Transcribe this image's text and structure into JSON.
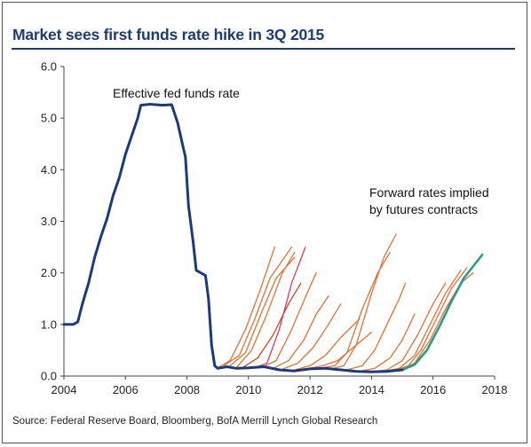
{
  "title": "Market sees first funds rate hike in 3Q 2015",
  "source": "Source: Federal Reserve Board, Bloomberg, BofA Merrill Lynch Global Research",
  "colors": {
    "title": "#1f3c72",
    "fed_funds": "#1b3a7a",
    "forward": "#d9733a",
    "forward_dark": "#c44a2a",
    "forward_magenta": "#d63a5e",
    "forward_latest": "#2a9b86"
  },
  "chart_data": {
    "type": "line",
    "title": "Market sees first funds rate hike in 3Q 2015",
    "xlim": [
      2004,
      2018
    ],
    "ylim": [
      0,
      6
    ],
    "x_ticks": [
      "2004",
      "2006",
      "2008",
      "2010",
      "2012",
      "2014",
      "2016",
      "2018"
    ],
    "y_ticks": [
      "0.0",
      "1.0",
      "2.0",
      "3.0",
      "4.0",
      "5.0",
      "6.0"
    ],
    "annotations": [
      {
        "text": "Effective fed funds rate"
      },
      {
        "text": "Forward rates implied"
      },
      {
        "text": "by futures contracts"
      }
    ],
    "series": [
      {
        "role": "fed_funds",
        "label": "Effective fed funds rate",
        "points": [
          [
            2004.0,
            1.0
          ],
          [
            2004.3,
            1.0
          ],
          [
            2004.45,
            1.05
          ],
          [
            2004.6,
            1.4
          ],
          [
            2004.8,
            1.8
          ],
          [
            2005.0,
            2.3
          ],
          [
            2005.2,
            2.7
          ],
          [
            2005.4,
            3.05
          ],
          [
            2005.6,
            3.5
          ],
          [
            2005.8,
            3.85
          ],
          [
            2006.0,
            4.3
          ],
          [
            2006.2,
            4.65
          ],
          [
            2006.4,
            5.0
          ],
          [
            2006.5,
            5.25
          ],
          [
            2006.8,
            5.27
          ],
          [
            2007.2,
            5.25
          ],
          [
            2007.5,
            5.26
          ],
          [
            2007.7,
            4.9
          ],
          [
            2007.85,
            4.5
          ],
          [
            2007.95,
            4.25
          ],
          [
            2008.05,
            3.3
          ],
          [
            2008.2,
            2.6
          ],
          [
            2008.3,
            2.05
          ],
          [
            2008.45,
            2.0
          ],
          [
            2008.6,
            1.95
          ],
          [
            2008.7,
            1.5
          ],
          [
            2008.8,
            0.6
          ],
          [
            2008.9,
            0.2
          ],
          [
            2009.0,
            0.15
          ],
          [
            2009.3,
            0.18
          ],
          [
            2009.6,
            0.15
          ],
          [
            2010.0,
            0.16
          ],
          [
            2010.5,
            0.18
          ],
          [
            2011.0,
            0.12
          ],
          [
            2011.5,
            0.1
          ],
          [
            2012.0,
            0.14
          ],
          [
            2012.5,
            0.15
          ],
          [
            2013.0,
            0.12
          ],
          [
            2013.5,
            0.09
          ],
          [
            2014.0,
            0.08
          ],
          [
            2014.5,
            0.09
          ],
          [
            2015.0,
            0.12
          ]
        ]
      },
      {
        "role": "forward",
        "points": [
          [
            2009.0,
            0.16
          ],
          [
            2009.4,
            0.3
          ],
          [
            2009.9,
            0.9
          ],
          [
            2010.4,
            1.7
          ],
          [
            2010.85,
            2.5
          ]
        ]
      },
      {
        "role": "forward",
        "points": [
          [
            2009.2,
            0.2
          ],
          [
            2009.7,
            0.4
          ],
          [
            2010.2,
            1.1
          ],
          [
            2010.7,
            1.9
          ],
          [
            2011.4,
            2.5
          ]
        ]
      },
      {
        "role": "forward",
        "points": [
          [
            2009.4,
            0.2
          ],
          [
            2009.9,
            0.45
          ],
          [
            2010.4,
            1.2
          ],
          [
            2010.9,
            1.9
          ],
          [
            2011.5,
            2.3
          ]
        ]
      },
      {
        "role": "forward",
        "points": [
          [
            2009.6,
            0.16
          ],
          [
            2010.1,
            0.5
          ],
          [
            2010.6,
            1.2
          ],
          [
            2011.1,
            2.0
          ],
          [
            2011.5,
            2.4
          ]
        ]
      },
      {
        "role": "forward_magenta",
        "points": [
          [
            2010.2,
            0.16
          ],
          [
            2010.6,
            0.25
          ],
          [
            2011.0,
            0.9
          ],
          [
            2011.4,
            1.8
          ],
          [
            2011.85,
            2.5
          ]
        ]
      },
      {
        "role": "forward_dark",
        "points": [
          [
            2009.8,
            0.16
          ],
          [
            2010.3,
            0.35
          ],
          [
            2010.8,
            0.8
          ],
          [
            2011.3,
            1.4
          ],
          [
            2011.7,
            1.8
          ]
        ]
      },
      {
        "role": "forward",
        "points": [
          [
            2010.4,
            0.16
          ],
          [
            2010.9,
            0.3
          ],
          [
            2011.4,
            0.9
          ],
          [
            2011.9,
            1.6
          ],
          [
            2012.2,
            2.0
          ]
        ]
      },
      {
        "role": "forward",
        "points": [
          [
            2010.8,
            0.15
          ],
          [
            2011.3,
            0.3
          ],
          [
            2011.8,
            0.7
          ],
          [
            2012.2,
            1.2
          ],
          [
            2012.6,
            1.55
          ]
        ]
      },
      {
        "role": "forward",
        "points": [
          [
            2011.1,
            0.13
          ],
          [
            2011.6,
            0.25
          ],
          [
            2012.1,
            0.55
          ],
          [
            2012.6,
            1.0
          ],
          [
            2013.0,
            1.4
          ]
        ]
      },
      {
        "role": "forward",
        "points": [
          [
            2011.5,
            0.12
          ],
          [
            2012.0,
            0.2
          ],
          [
            2012.5,
            0.4
          ],
          [
            2013.0,
            0.75
          ],
          [
            2013.6,
            1.1
          ]
        ]
      },
      {
        "role": "forward",
        "points": [
          [
            2011.9,
            0.14
          ],
          [
            2012.4,
            0.2
          ],
          [
            2012.9,
            0.3
          ],
          [
            2013.4,
            0.55
          ],
          [
            2014.0,
            0.85
          ]
        ]
      },
      {
        "role": "forward",
        "points": [
          [
            2012.3,
            0.15
          ],
          [
            2012.8,
            0.2
          ],
          [
            2013.2,
            0.45
          ],
          [
            2013.7,
            1.3
          ],
          [
            2014.2,
            2.0
          ],
          [
            2014.6,
            2.4
          ]
        ]
      },
      {
        "role": "forward",
        "points": [
          [
            2012.7,
            0.14
          ],
          [
            2013.1,
            0.2
          ],
          [
            2013.5,
            0.6
          ],
          [
            2014.0,
            1.6
          ],
          [
            2014.4,
            2.3
          ],
          [
            2014.8,
            2.75
          ]
        ]
      },
      {
        "role": "forward",
        "points": [
          [
            2013.2,
            0.12
          ],
          [
            2013.7,
            0.2
          ],
          [
            2014.1,
            0.5
          ],
          [
            2014.5,
            1.0
          ],
          [
            2014.9,
            1.5
          ],
          [
            2015.1,
            1.8
          ]
        ]
      },
      {
        "role": "forward",
        "points": [
          [
            2013.6,
            0.09
          ],
          [
            2014.1,
            0.15
          ],
          [
            2014.6,
            0.35
          ],
          [
            2015.0,
            0.7
          ],
          [
            2015.4,
            1.2
          ]
        ]
      },
      {
        "role": "forward",
        "points": [
          [
            2014.0,
            0.08
          ],
          [
            2014.5,
            0.12
          ],
          [
            2015.0,
            0.3
          ],
          [
            2015.5,
            0.8
          ],
          [
            2016.0,
            1.4
          ],
          [
            2016.4,
            1.8
          ]
        ]
      },
      {
        "role": "forward",
        "points": [
          [
            2014.4,
            0.09
          ],
          [
            2014.9,
            0.15
          ],
          [
            2015.4,
            0.4
          ],
          [
            2015.9,
            1.0
          ],
          [
            2016.4,
            1.6
          ],
          [
            2016.9,
            2.05
          ]
        ]
      },
      {
        "role": "forward",
        "points": [
          [
            2014.7,
            0.1
          ],
          [
            2015.2,
            0.2
          ],
          [
            2015.6,
            0.5
          ],
          [
            2016.1,
            1.1
          ],
          [
            2016.6,
            1.7
          ],
          [
            2017.1,
            2.1
          ]
        ]
      },
      {
        "role": "forward",
        "points": [
          [
            2014.9,
            0.1
          ],
          [
            2015.4,
            0.25
          ],
          [
            2015.9,
            0.7
          ],
          [
            2016.4,
            1.3
          ],
          [
            2016.9,
            1.8
          ],
          [
            2017.3,
            2.0
          ]
        ]
      },
      {
        "role": "forward_latest",
        "points": [
          [
            2015.0,
            0.12
          ],
          [
            2015.4,
            0.22
          ],
          [
            2015.8,
            0.5
          ],
          [
            2016.2,
            0.95
          ],
          [
            2016.6,
            1.45
          ],
          [
            2017.0,
            1.9
          ],
          [
            2017.4,
            2.2
          ],
          [
            2017.6,
            2.35
          ]
        ]
      }
    ]
  }
}
